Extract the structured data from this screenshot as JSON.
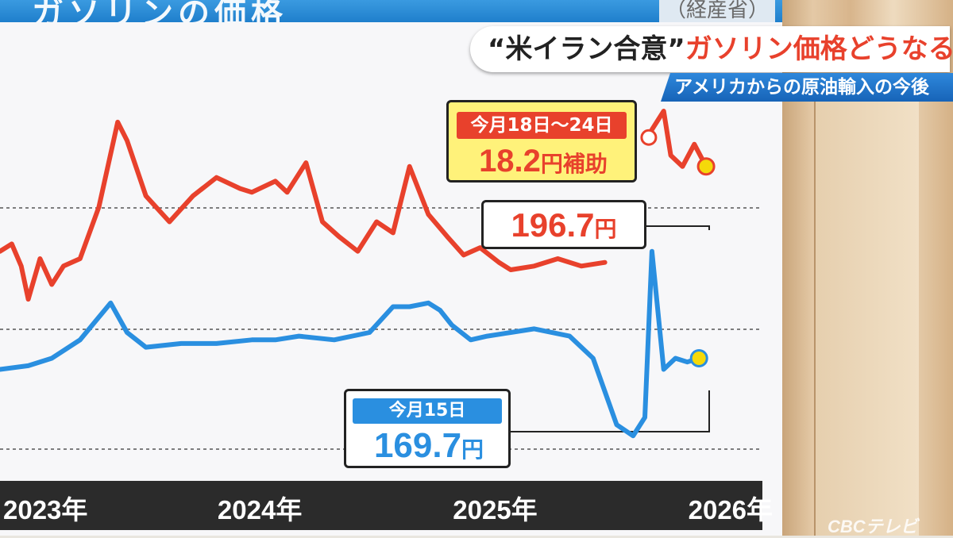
{
  "header": {
    "partial_title": "ガソリンの価格",
    "partial_source": "（経産省）"
  },
  "headline": {
    "quote_part": "“米イラン合意”",
    "rest_part": "ガソリン価格どうなる？"
  },
  "subheadline": "アメリカからの原油輸入の今後",
  "callouts": {
    "subsidy_period": "今月18日～24日",
    "subsidy_amount": "18.2",
    "subsidy_unit": "円補助",
    "actual_price": "196.7",
    "actual_price_unit": "円",
    "retail_date": "今月15日",
    "retail_price": "169.7",
    "retail_price_unit": "円"
  },
  "watermark": "CBCテレビ",
  "colors": {
    "red_series": "#e8412c",
    "blue_series": "#2a8fe0",
    "marker_fill": "#f5d90a"
  },
  "chart_data": {
    "type": "line",
    "x_unit": "年",
    "x_tick_labels": [
      "2023年",
      "2024年",
      "2025年",
      "2026年"
    ],
    "x_ticks": [
      2023,
      2024,
      2025,
      2026
    ],
    "y_range_relative": true,
    "series": [
      {
        "color": "red",
        "points": [
          [
            2022.88,
            0.62
          ],
          [
            2022.93,
            0.64
          ],
          [
            2022.97,
            0.58
          ],
          [
            2023.0,
            0.49
          ],
          [
            2023.05,
            0.6
          ],
          [
            2023.1,
            0.53
          ],
          [
            2023.15,
            0.58
          ],
          [
            2023.22,
            0.6
          ],
          [
            2023.3,
            0.74
          ],
          [
            2023.38,
            0.97
          ],
          [
            2023.42,
            0.92
          ],
          [
            2023.5,
            0.77
          ],
          [
            2023.6,
            0.7
          ],
          [
            2023.7,
            0.77
          ],
          [
            2023.8,
            0.82
          ],
          [
            2023.9,
            0.79
          ],
          [
            2023.95,
            0.78
          ],
          [
            2024.05,
            0.81
          ],
          [
            2024.1,
            0.78
          ],
          [
            2024.18,
            0.86
          ],
          [
            2024.25,
            0.7
          ],
          [
            2024.32,
            0.66
          ],
          [
            2024.4,
            0.62
          ],
          [
            2024.48,
            0.7
          ],
          [
            2024.55,
            0.67
          ],
          [
            2024.62,
            0.85
          ],
          [
            2024.7,
            0.72
          ],
          [
            2024.78,
            0.66
          ],
          [
            2024.85,
            0.61
          ],
          [
            2024.92,
            0.63
          ],
          [
            2025.0,
            0.59
          ],
          [
            2025.05,
            0.57
          ],
          [
            2025.15,
            0.58
          ],
          [
            2025.25,
            0.6
          ],
          [
            2025.35,
            0.58
          ],
          [
            2025.45,
            0.59
          ]
        ]
      },
      {
        "color": "red",
        "points": [
          [
            2025.65,
            0.95
          ],
          [
            2025.7,
            1.0
          ],
          [
            2025.73,
            0.88
          ],
          [
            2025.78,
            0.85
          ],
          [
            2025.83,
            0.91
          ],
          [
            2025.88,
            0.85
          ]
        ]
      },
      {
        "color": "blue",
        "points": [
          [
            2022.88,
            0.3
          ],
          [
            2023.0,
            0.31
          ],
          [
            2023.1,
            0.33
          ],
          [
            2023.22,
            0.38
          ],
          [
            2023.35,
            0.48
          ],
          [
            2023.42,
            0.4
          ],
          [
            2023.5,
            0.36
          ],
          [
            2023.65,
            0.37
          ],
          [
            2023.8,
            0.37
          ],
          [
            2023.95,
            0.38
          ],
          [
            2024.05,
            0.38
          ],
          [
            2024.15,
            0.39
          ],
          [
            2024.3,
            0.38
          ],
          [
            2024.45,
            0.4
          ],
          [
            2024.55,
            0.47
          ],
          [
            2024.62,
            0.47
          ],
          [
            2024.7,
            0.48
          ],
          [
            2024.75,
            0.46
          ],
          [
            2024.8,
            0.42
          ],
          [
            2024.88,
            0.38
          ],
          [
            2024.95,
            0.39
          ],
          [
            2025.05,
            0.4
          ],
          [
            2025.15,
            0.41
          ],
          [
            2025.3,
            0.39
          ],
          [
            2025.4,
            0.33
          ],
          [
            2025.5,
            0.15
          ],
          [
            2025.57,
            0.12
          ],
          [
            2025.62,
            0.17
          ],
          [
            2025.65,
            0.62
          ],
          [
            2025.7,
            0.3
          ],
          [
            2025.75,
            0.33
          ],
          [
            2025.8,
            0.32
          ],
          [
            2025.85,
            0.33
          ]
        ]
      }
    ],
    "endpoints": [
      {
        "series": "red",
        "x": 2025.88,
        "value": 196.7,
        "unit": "円"
      },
      {
        "series": "blue",
        "x": 2025.85,
        "value": 169.7,
        "unit": "円"
      }
    ],
    "gridlines": "dashed",
    "grid": true,
    "legend": "none"
  }
}
